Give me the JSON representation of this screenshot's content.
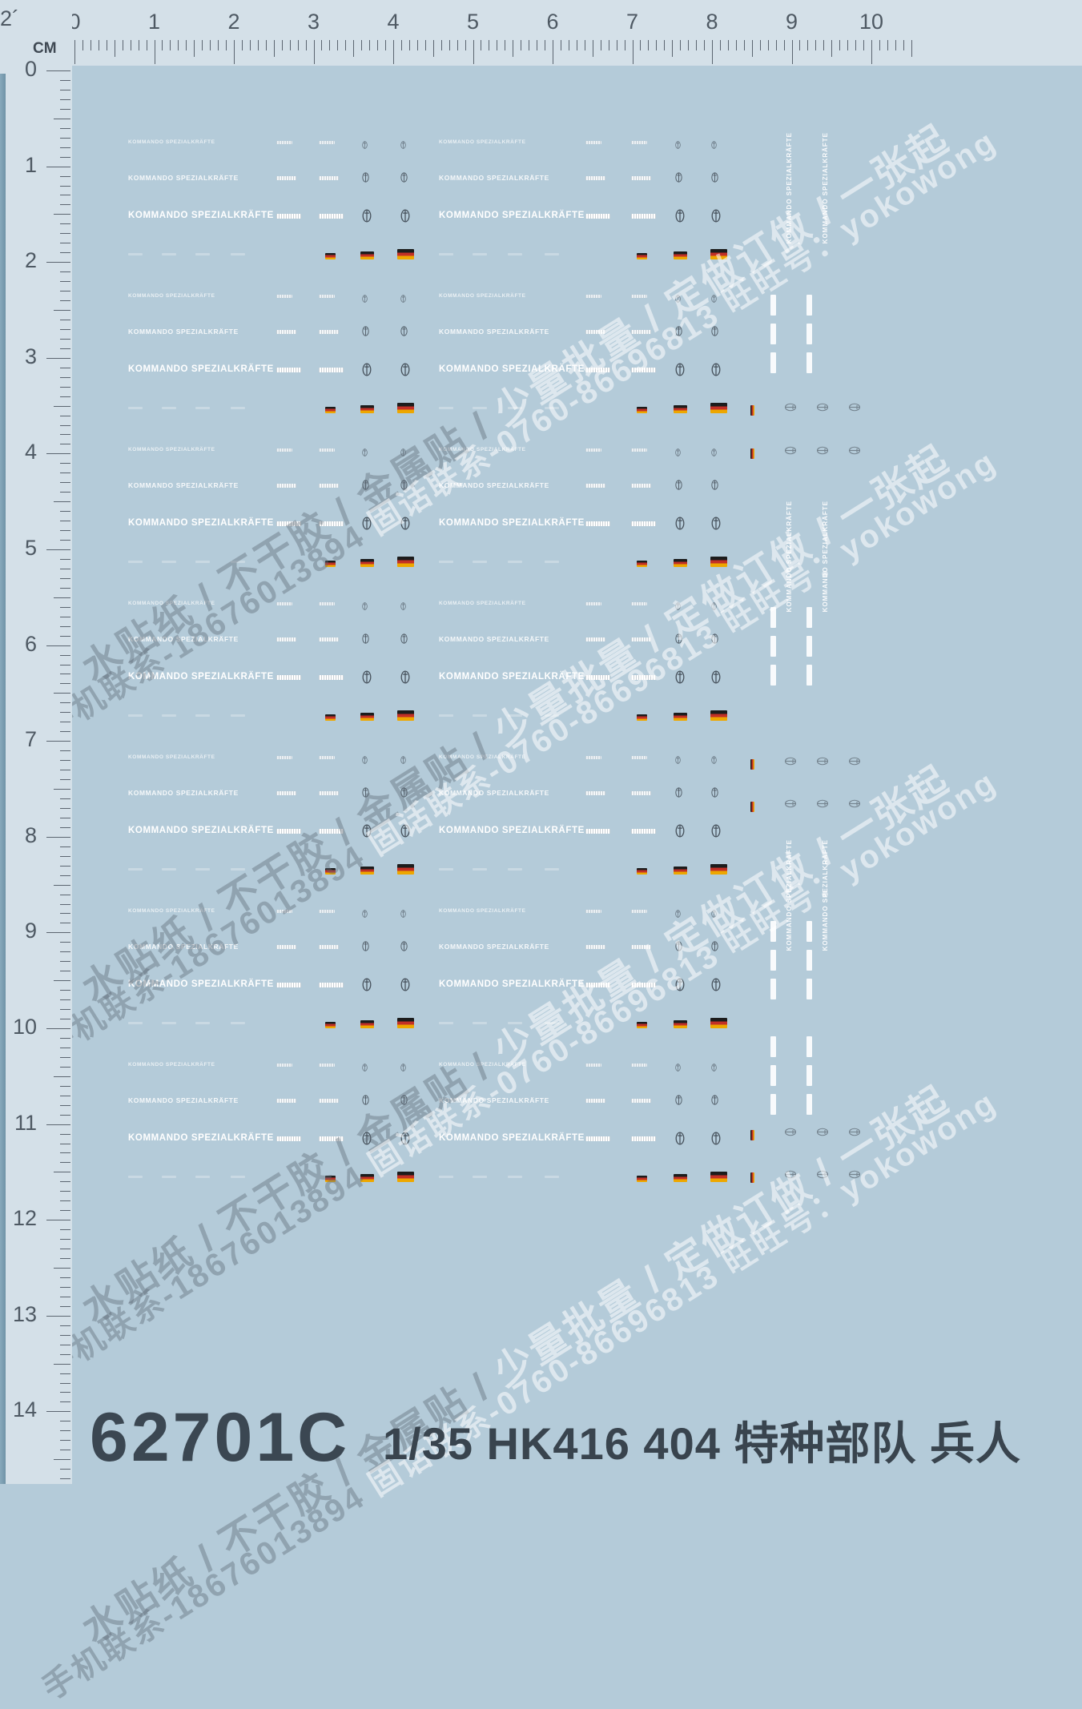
{
  "page": {
    "sheet_color": "#b4cbd9",
    "ruler_color": "#d4e0e8"
  },
  "ruler": {
    "unit": "CM",
    "corner_partial": "2´",
    "h_numbers": [
      "0",
      "1",
      "2",
      "3",
      "4",
      "5",
      "6",
      "7",
      "8",
      "9",
      "10"
    ],
    "v_numbers": [
      "0",
      "1",
      "2",
      "3",
      "4",
      "5",
      "6",
      "7",
      "8",
      "9",
      "10",
      "11",
      "12",
      "13",
      "14"
    ]
  },
  "decals": {
    "unit_name": "KOMMANDO SPEZIALKRÄFTE",
    "flag_colors": {
      "black": "#1c1c1c",
      "red": "#c23026",
      "gold": "#eda700"
    },
    "emblem_color": "#3a434d",
    "emblem_color_faint": "#5f6b75"
  },
  "watermark": {
    "product_gray": "水贴纸 / 不干胶 / 金属贴 / ",
    "product_white": "少量批量 / 定做订做 / 一张起",
    "contact_gray": "手机联系-18676013894  ",
    "contact_white": "固话联系-0760-86696813  旺旺号：yokowong"
  },
  "footer": {
    "code": "62701C",
    "title": "1/35 HK416 404 特种部队 兵人"
  }
}
